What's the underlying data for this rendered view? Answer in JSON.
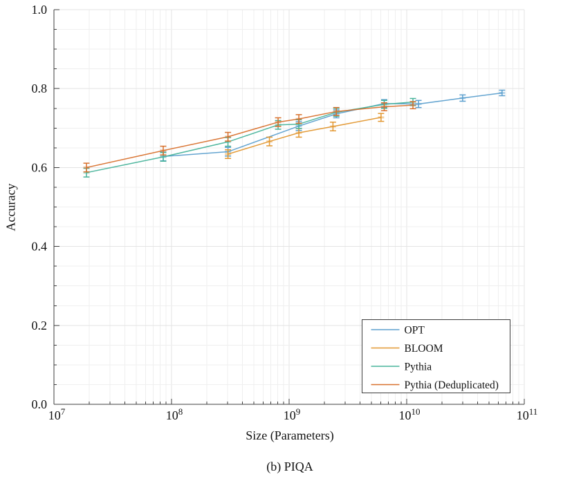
{
  "figure": {
    "caption": "(b) PIQA",
    "xlabel": "Size (Parameters)",
    "ylabel": "Accuracy"
  },
  "chart_data": {
    "type": "line",
    "title": "",
    "xlabel": "Size (Parameters)",
    "ylabel": "Accuracy",
    "x_scale": "log",
    "xlim": [
      10000000.0,
      100000000000.0
    ],
    "ylim": [
      0.0,
      1.0
    ],
    "grid": "minor, light gray, both axes",
    "error_bars": true,
    "legend_position": "lower right",
    "x_ticks": [
      {
        "base": "10",
        "exp": "7",
        "value": 10000000.0
      },
      {
        "base": "10",
        "exp": "8",
        "value": 100000000.0
      },
      {
        "base": "10",
        "exp": "9",
        "value": 1000000000.0
      },
      {
        "base": "10",
        "exp": "10",
        "value": 10000000000.0
      },
      {
        "base": "10",
        "exp": "11",
        "value": 100000000000.0
      }
    ],
    "y_ticks": [
      {
        "label": "0.0",
        "value": 0.0
      },
      {
        "label": "0.2",
        "value": 0.2
      },
      {
        "label": "0.4",
        "value": 0.4
      },
      {
        "label": "0.6",
        "value": 0.6
      },
      {
        "label": "0.8",
        "value": 0.8
      },
      {
        "label": "1.0",
        "value": 1.0
      }
    ],
    "y_minor_step": 0.05,
    "series": [
      {
        "name": "OPT",
        "color": "#5B9FCE",
        "x": [
          85000000.0,
          302000000.0,
          1210000000.0,
          2520000000.0,
          6440000000.0,
          12600000000.0,
          29900000000.0,
          64700000000.0
        ],
        "y": [
          0.628,
          0.64,
          0.705,
          0.736,
          0.762,
          0.761,
          0.776,
          0.789
        ],
        "err": [
          0.011,
          0.011,
          0.011,
          0.01,
          0.01,
          0.009,
          0.008,
          0.007
        ]
      },
      {
        "name": "BLOOM",
        "color": "#E2962E",
        "x": [
          302000000.0,
          680000000.0,
          1210000000.0,
          2360000000.0,
          6050000000.0
        ],
        "y": [
          0.634,
          0.666,
          0.688,
          0.704,
          0.727
        ],
        "err": [
          0.011,
          0.011,
          0.011,
          0.011,
          0.01
        ]
      },
      {
        "name": "Pythia",
        "color": "#47B39A",
        "x": [
          18900000.0,
          85000000.0,
          302000000.0,
          806000000.0,
          1210000000.0,
          2520000000.0,
          6440000000.0,
          11300000000.0
        ],
        "y": [
          0.587,
          0.627,
          0.665,
          0.708,
          0.71,
          0.74,
          0.76,
          0.766
        ],
        "err": [
          0.011,
          0.011,
          0.011,
          0.011,
          0.011,
          0.01,
          0.01,
          0.009
        ]
      },
      {
        "name": "Pythia (Deduplicated)",
        "color": "#D8702C",
        "x": [
          18900000.0,
          85000000.0,
          302000000.0,
          806000000.0,
          1210000000.0,
          2520000000.0,
          6440000000.0,
          11300000000.0
        ],
        "y": [
          0.6,
          0.643,
          0.678,
          0.715,
          0.723,
          0.742,
          0.754,
          0.758
        ],
        "err": [
          0.011,
          0.011,
          0.011,
          0.011,
          0.011,
          0.01,
          0.01,
          0.009
        ]
      }
    ]
  }
}
